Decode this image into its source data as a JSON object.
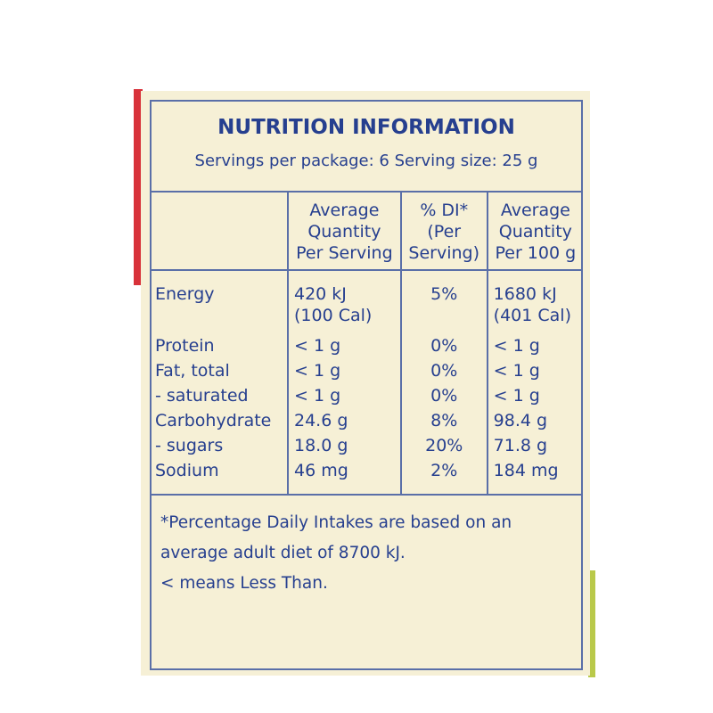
{
  "header": {
    "title": "NUTRITION INFORMATION",
    "subtitle": "Servings per package: 6 Serving size: 25 g"
  },
  "table": {
    "columns": [
      [
        "Average",
        "Quantity",
        "Per Serving"
      ],
      [
        "% DI*",
        "(Per",
        "Serving)"
      ],
      [
        "Average",
        "Quantity",
        "Per 100 g"
      ]
    ],
    "rows": [
      [
        "Energy",
        [
          "420 kJ",
          "(100 Cal)"
        ],
        "5%",
        [
          "1680 kJ",
          "(401 Cal)"
        ]
      ],
      [
        "Protein",
        "< 1 g",
        "0%",
        "< 1 g"
      ],
      [
        "Fat, total",
        "< 1 g",
        "0%",
        "< 1 g"
      ],
      [
        "- saturated",
        "< 1 g",
        "0%",
        "< 1 g"
      ],
      [
        "Carbohydrate",
        "24.6 g",
        "8%",
        "98.4 g"
      ],
      [
        "- sugars",
        "18.0 g",
        "20%",
        "71.8 g"
      ],
      [
        "Sodium",
        "46 mg",
        "2%",
        "184 mg"
      ]
    ]
  },
  "footnote": [
    "*Percentage Daily Intakes are based on an",
    "average adult diet of 8700 kJ.",
    "< means Less Than."
  ]
}
